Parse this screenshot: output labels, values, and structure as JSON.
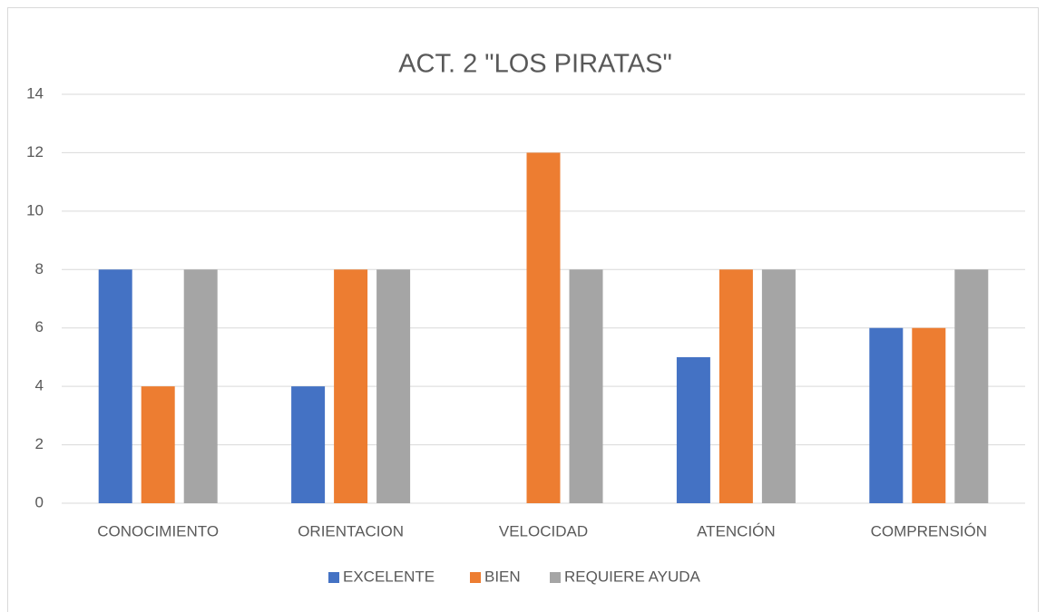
{
  "chart_data": {
    "type": "bar",
    "title": "ACT. 2 \"LOS PIRATAS\"",
    "categories": [
      "CONOCIMIENTO",
      "ORIENTACION",
      "VELOCIDAD",
      "ATENCIÓN",
      "COMPRENSIÓN"
    ],
    "series": [
      {
        "name": "EXCELENTE",
        "color": "#4472c4",
        "values": [
          8,
          4,
          0,
          5,
          6
        ]
      },
      {
        "name": "BIEN",
        "color": "#ed7d31",
        "values": [
          4,
          8,
          12,
          8,
          6
        ]
      },
      {
        "name": "REQUIERE AYUDA",
        "color": "#a5a5a5",
        "values": [
          8,
          8,
          8,
          8,
          8
        ]
      }
    ],
    "ylim": [
      0,
      14
    ],
    "yticks": [
      0,
      2,
      4,
      6,
      8,
      10,
      12,
      14
    ],
    "grid": true,
    "legend": "bottom"
  }
}
